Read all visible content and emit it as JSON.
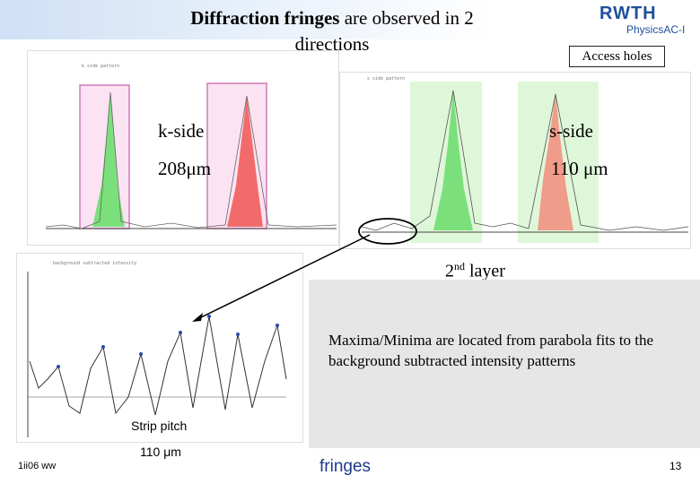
{
  "slide": {
    "title_bold": "Diffraction fringes",
    "title_rest": " are observed in 2 directions",
    "logo_main": "RWTH",
    "logo_sub": "PhysicsAC-I",
    "access_holes": "Access holes",
    "k_side": "k-side",
    "k_size": "208μm",
    "s_side": "s-side",
    "s_size": "110 μm",
    "layer_num": "2",
    "layer_sup": "nd",
    "layer_word": " layer",
    "maxima_text": "Maxima/Minima are located from parabola fits to the background subtracted intensity patterns",
    "strip_pitch_label": "Strip pitch",
    "strip_pitch_value": "110 μm",
    "footer_left": "1ii06 ww",
    "footer_center": "fringes",
    "page_number": "13"
  },
  "colors": {
    "green_peak": "#7be07b",
    "red_peak": "#f26b6b",
    "pink_band": "#fbe3f3",
    "green_band": "#dff7d9",
    "salmon_peak": "#f09c8a",
    "arrow": "#000000"
  }
}
